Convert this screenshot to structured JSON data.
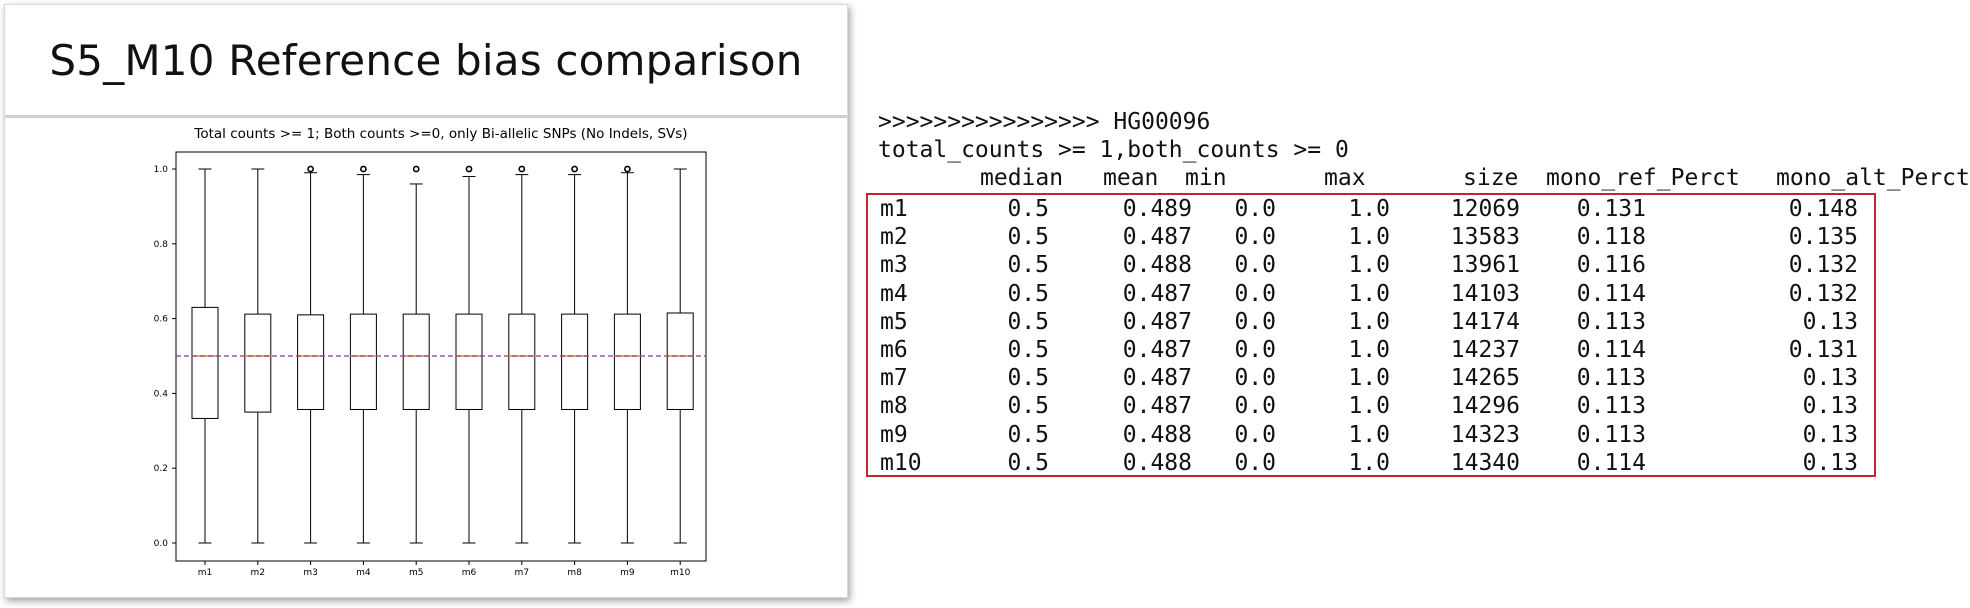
{
  "slide": {
    "title": "S5_M10 Reference bias comparison"
  },
  "chart_data": {
    "type": "box",
    "title": "Total counts >= 1; Both counts >=0, only Bi-allelic SNPs (No Indels, SVs)",
    "xlabel": "",
    "ylabel": "",
    "categories": [
      "m1",
      "m2",
      "m3",
      "m4",
      "m5",
      "m6",
      "m7",
      "m8",
      "m9",
      "m10"
    ],
    "ylim": [
      0.0,
      1.0
    ],
    "yticks": [
      "0.0",
      "0.2",
      "0.4",
      "0.6",
      "0.8",
      "1.0"
    ],
    "boxes": [
      {
        "whisker_low": 0.0,
        "q1": 0.333,
        "median": 0.5,
        "q3": 0.63,
        "whisker_high": 1.0,
        "outliers": []
      },
      {
        "whisker_low": 0.0,
        "q1": 0.35,
        "median": 0.5,
        "q3": 0.612,
        "whisker_high": 1.0,
        "outliers": []
      },
      {
        "whisker_low": 0.0,
        "q1": 0.357,
        "median": 0.5,
        "q3": 0.61,
        "whisker_high": 0.99,
        "outliers": [
          1.0
        ]
      },
      {
        "whisker_low": 0.0,
        "q1": 0.357,
        "median": 0.5,
        "q3": 0.612,
        "whisker_high": 0.985,
        "outliers": [
          1.0
        ]
      },
      {
        "whisker_low": 0.0,
        "q1": 0.357,
        "median": 0.5,
        "q3": 0.612,
        "whisker_high": 0.96,
        "outliers": [
          1.0
        ]
      },
      {
        "whisker_low": 0.0,
        "q1": 0.357,
        "median": 0.5,
        "q3": 0.612,
        "whisker_high": 0.98,
        "outliers": [
          1.0
        ]
      },
      {
        "whisker_low": 0.0,
        "q1": 0.357,
        "median": 0.5,
        "q3": 0.612,
        "whisker_high": 0.985,
        "outliers": [
          1.0
        ]
      },
      {
        "whisker_low": 0.0,
        "q1": 0.357,
        "median": 0.5,
        "q3": 0.612,
        "whisker_high": 0.985,
        "outliers": [
          1.0
        ]
      },
      {
        "whisker_low": 0.0,
        "q1": 0.357,
        "median": 0.5,
        "q3": 0.612,
        "whisker_high": 0.99,
        "outliers": [
          1.0
        ]
      },
      {
        "whisker_low": 0.0,
        "q1": 0.357,
        "median": 0.5,
        "q3": 0.615,
        "whisker_high": 1.0,
        "outliers": []
      }
    ],
    "reference_line": 0.5,
    "colors": {
      "median": "#ff7f0e",
      "reference": "#7b3fa0",
      "box": "#000000"
    }
  },
  "console": {
    "sample_line": ">>>>>>>>>>>>>>>> HG00096",
    "filter_line": "total_counts >= 1,both_counts >= 0",
    "columns": [
      "median",
      "mean",
      "min",
      "max",
      "size",
      "mono_ref_Perct",
      "mono_alt_Perct"
    ],
    "rows": [
      [
        "m1",
        "0.5",
        "0.489",
        "0.0",
        "1.0",
        "12069",
        "0.131",
        "0.148"
      ],
      [
        "m2",
        "0.5",
        "0.487",
        "0.0",
        "1.0",
        "13583",
        "0.118",
        "0.135"
      ],
      [
        "m3",
        "0.5",
        "0.488",
        "0.0",
        "1.0",
        "13961",
        "0.116",
        "0.132"
      ],
      [
        "m4",
        "0.5",
        "0.487",
        "0.0",
        "1.0",
        "14103",
        "0.114",
        "0.132"
      ],
      [
        "m5",
        "0.5",
        "0.487",
        "0.0",
        "1.0",
        "14174",
        "0.113",
        "0.13"
      ],
      [
        "m6",
        "0.5",
        "0.487",
        "0.0",
        "1.0",
        "14237",
        "0.114",
        "0.131"
      ],
      [
        "m7",
        "0.5",
        "0.487",
        "0.0",
        "1.0",
        "14265",
        "0.113",
        "0.13"
      ],
      [
        "m8",
        "0.5",
        "0.487",
        "0.0",
        "1.0",
        "14296",
        "0.113",
        "0.13"
      ],
      [
        "m9",
        "0.5",
        "0.488",
        "0.0",
        "1.0",
        "14323",
        "0.113",
        "0.13"
      ],
      [
        "m10",
        "0.5",
        "0.488",
        "0.0",
        "1.0",
        "14340",
        "0.114",
        "0.13"
      ]
    ],
    "highlight_color": "#c0272d"
  }
}
